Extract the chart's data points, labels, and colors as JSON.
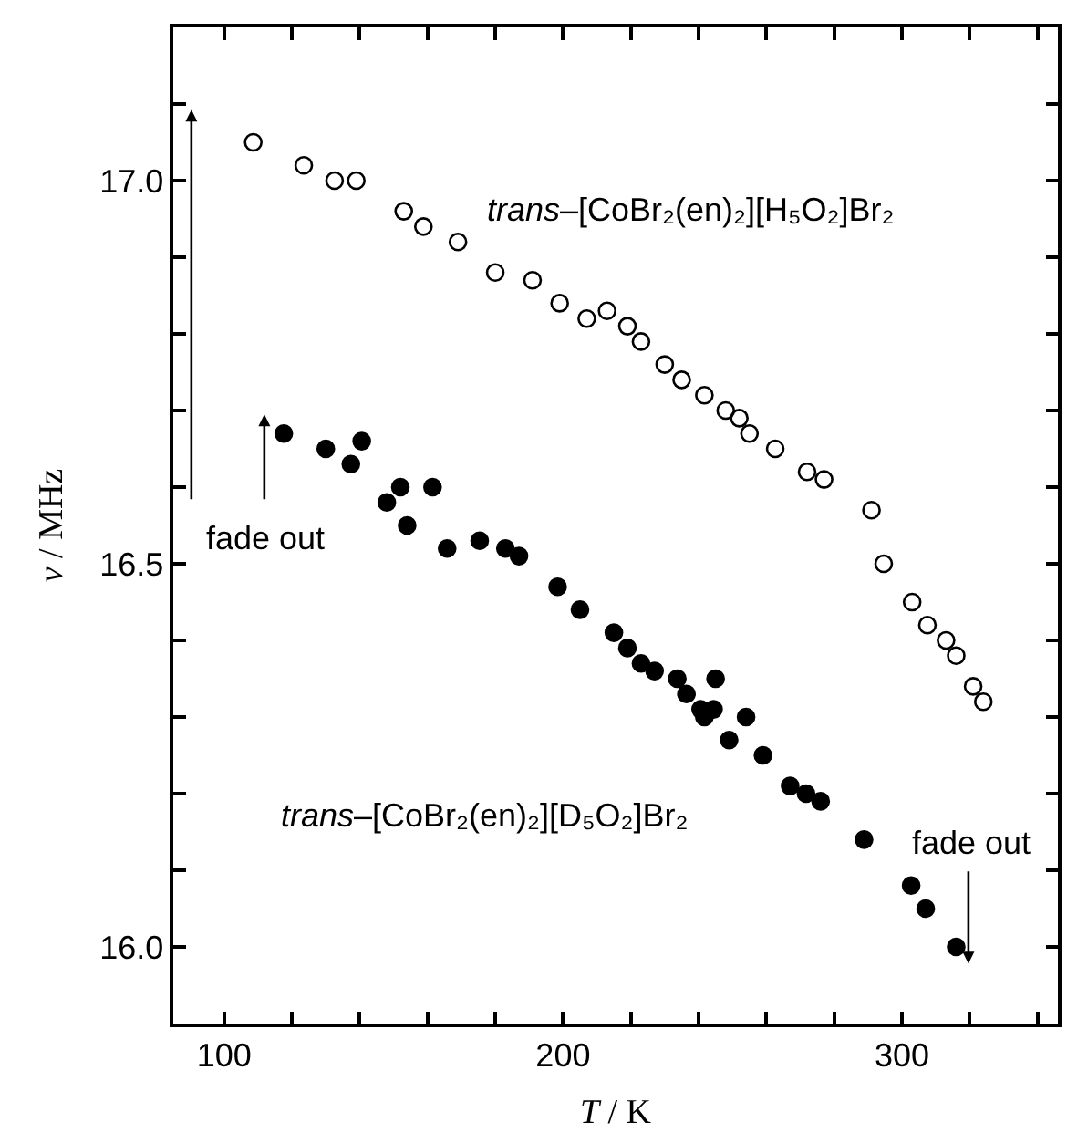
{
  "chart_data": {
    "type": "scatter",
    "xlabel": "T / K",
    "ylabel": "ν / MHz",
    "xlim": [
      85,
      346
    ],
    "ylim": [
      15.9,
      17.2
    ],
    "xticks": [
      100,
      {
        "value": 120,
        "label": null
      },
      {
        "value": 140,
        "label": null
      },
      {
        "value": 160,
        "label": null
      },
      {
        "value": 180,
        "label": null
      },
      200,
      {
        "value": 220,
        "label": null
      },
      {
        "value": 240,
        "label": null
      },
      {
        "value": 260,
        "label": null
      },
      {
        "value": 280,
        "label": null
      },
      300,
      {
        "value": 320,
        "label": null
      },
      {
        "value": 340,
        "label": null
      }
    ],
    "yticks": [
      {
        "value": 16.0,
        "label": "16.0"
      },
      {
        "value": 16.1,
        "label": null
      },
      {
        "value": 16.2,
        "label": null
      },
      {
        "value": 16.3,
        "label": null
      },
      {
        "value": 16.4,
        "label": null
      },
      16.5,
      {
        "value": 16.6,
        "label": null
      },
      {
        "value": 16.7,
        "label": null
      },
      {
        "value": 16.8,
        "label": null
      },
      {
        "value": 16.9,
        "label": null
      },
      {
        "value": 17.0,
        "label": "17.0"
      },
      {
        "value": 17.1,
        "label": null
      }
    ],
    "series": [
      {
        "color": "#000000",
        "marker": "circle-open",
        "x": [
          108.6,
          123.5,
          132.6,
          139,
          153,
          158.8,
          169,
          180,
          191,
          199,
          207,
          213,
          219,
          223,
          230,
          235,
          241.7,
          248,
          252,
          255,
          262.6,
          272,
          277,
          291,
          294.6,
          303,
          307.5,
          313,
          316,
          321,
          324
        ],
        "values": [
          17.05,
          17.02,
          17.0,
          17.0,
          16.96,
          16.94,
          16.92,
          16.88,
          16.87,
          16.84,
          16.82,
          16.83,
          16.81,
          16.79,
          16.76,
          16.74,
          16.72,
          16.7,
          16.69,
          16.67,
          16.65,
          16.62,
          16.61,
          16.57,
          16.5,
          16.45,
          16.42,
          16.4,
          16.38,
          16.34,
          16.32
        ]
      },
      {
        "color": "#000000",
        "marker": "circle",
        "x": [
          117.6,
          130,
          137.4,
          140.6,
          148,
          152,
          154,
          161.5,
          165.8,
          175.4,
          183,
          187,
          198.4,
          205,
          215,
          219,
          223,
          227,
          233.7,
          236.4,
          240.6,
          241.7,
          244.4,
          245,
          249,
          254,
          259,
          267,
          271.7,
          276,
          288.8,
          302.7,
          307,
          316
        ],
        "values": [
          16.67,
          16.65,
          16.63,
          16.66,
          16.58,
          16.6,
          16.55,
          16.6,
          16.52,
          16.53,
          16.52,
          16.51,
          16.47,
          16.44,
          16.41,
          16.39,
          16.37,
          16.36,
          16.35,
          16.33,
          16.31,
          16.3,
          16.31,
          16.35,
          16.27,
          16.3,
          16.25,
          16.21,
          16.2,
          16.19,
          16.14,
          16.08,
          16.05,
          16.0
        ]
      }
    ],
    "annotations": [
      "trans–[CoBr₂(en)₂][H₅O₂]Br₂",
      "trans–[CoBr₂(en)₂][D₅O₂]Br₂",
      "fade out",
      "fade out"
    ]
  }
}
